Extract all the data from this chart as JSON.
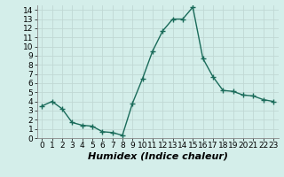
{
  "title": "",
  "xlabel": "Humidex (Indice chaleur)",
  "ylabel": "",
  "x": [
    0,
    1,
    2,
    3,
    4,
    5,
    6,
    7,
    8,
    9,
    10,
    11,
    12,
    13,
    14,
    15,
    16,
    17,
    18,
    19,
    20,
    21,
    22,
    23
  ],
  "y": [
    3.5,
    4.0,
    3.2,
    1.7,
    1.4,
    1.3,
    0.7,
    0.6,
    0.3,
    3.8,
    6.5,
    9.5,
    11.7,
    13.0,
    13.0,
    14.3,
    8.7,
    6.7,
    5.2,
    5.1,
    4.7,
    4.6,
    4.2,
    4.0
  ],
  "line_color": "#1a6b5a",
  "marker": "+",
  "marker_size": 4,
  "line_width": 1.0,
  "bg_color": "#d4eeea",
  "grid_color_major": "#c0d8d4",
  "grid_color_minor": "#e0f0ed",
  "tick_label_fontsize": 6.5,
  "xlabel_fontsize": 8,
  "xlim": [
    -0.5,
    23.5
  ],
  "ylim": [
    0,
    14.5
  ],
  "yticks": [
    0,
    1,
    2,
    3,
    4,
    5,
    6,
    7,
    8,
    9,
    10,
    11,
    12,
    13,
    14
  ],
  "xticks": [
    0,
    1,
    2,
    3,
    4,
    5,
    6,
    7,
    8,
    9,
    10,
    11,
    12,
    13,
    14,
    15,
    16,
    17,
    18,
    19,
    20,
    21,
    22,
    23
  ]
}
